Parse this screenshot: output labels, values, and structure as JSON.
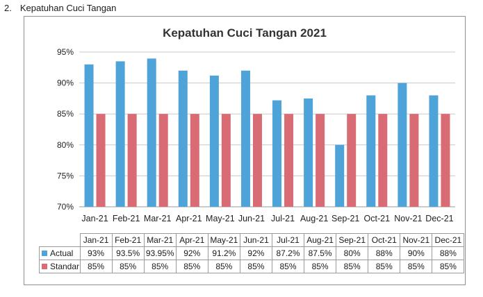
{
  "section": {
    "number": "2.",
    "title": "Kepatuhan Cuci Tangan"
  },
  "colors": {
    "actual": "#4ea3d8",
    "standar": "#d96b74",
    "grid": "#c8c8c8",
    "axis": "#9a9a9a"
  },
  "chart_data": {
    "type": "bar",
    "title": "Kepatuhan Cuci Tangan 2021",
    "categories": [
      "Jan-21",
      "Feb-21",
      "Mar-21",
      "Apr-21",
      "May-21",
      "Jun-21",
      "Jul-21",
      "Aug-21",
      "Sep-21",
      "Oct-21",
      "Nov-21",
      "Dec-21"
    ],
    "series": [
      {
        "name": "Actual",
        "values": [
          93,
          93.5,
          93.95,
          92,
          91.2,
          92,
          87.2,
          87.5,
          80,
          88,
          90,
          88
        ],
        "labels": [
          "93%",
          "93.5%",
          "93.95%",
          "92%",
          "91.2%",
          "92%",
          "87.2%",
          "87.5%",
          "80%",
          "88%",
          "90%",
          "88%"
        ]
      },
      {
        "name": "Standar",
        "values": [
          85,
          85,
          85,
          85,
          85,
          85,
          85,
          85,
          85,
          85,
          85,
          85
        ],
        "labels": [
          "85%",
          "85%",
          "85%",
          "85%",
          "85%",
          "85%",
          "85%",
          "85%",
          "85%",
          "85%",
          "85%",
          "85%"
        ]
      }
    ],
    "ylim": [
      70,
      95
    ],
    "yticks": [
      70,
      75,
      80,
      85,
      90,
      95
    ],
    "ytick_labels": [
      "70%",
      "75%",
      "80%",
      "85%",
      "90%",
      "95%"
    ],
    "grid": true,
    "legend": "data-table"
  }
}
